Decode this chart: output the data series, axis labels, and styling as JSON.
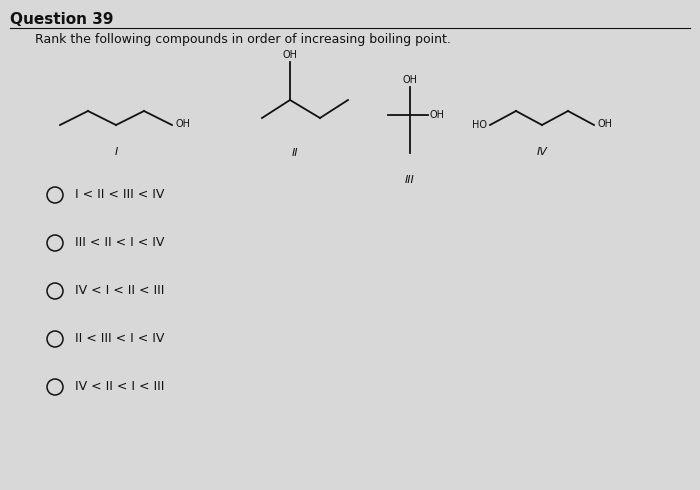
{
  "title": "Question 39",
  "subtitle": "Rank the following compounds in order of increasing boiling point.",
  "background_color": "#d8d8d8",
  "text_color": "#000000",
  "options": [
    "I < II < III < IV",
    "III < II < I < IV",
    "IV < I < II < III",
    "II < III < I < IV",
    "IV < II < I < III"
  ],
  "font_size_title": 11,
  "font_size_subtitle": 9,
  "font_size_options": 9,
  "font_size_labels": 8,
  "font_size_oh": 7
}
